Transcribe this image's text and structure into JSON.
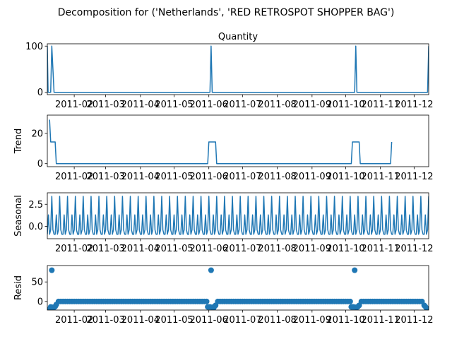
{
  "figure": {
    "suptitle": "Decomposition for ('Netherlands', 'RED RETROSPOT SHOPPER BAG')"
  },
  "colors": {
    "series": "#1f77b4",
    "axes": "#000000",
    "background": "#ffffff"
  },
  "chart_data": [
    {
      "type": "line",
      "title": "Quantity",
      "ylabel": "",
      "ylim": [
        -5,
        105
      ],
      "yticks": [
        0,
        100
      ],
      "ytick_labels": [
        "0",
        "100"
      ],
      "xlim_days": [
        0,
        340
      ],
      "xticks_days": [
        24,
        52,
        83,
        113,
        144,
        174,
        205,
        236,
        266,
        297,
        327
      ],
      "xtick_labels": [
        "2011-02",
        "2011-03",
        "2011-04",
        "2011-05",
        "2011-06",
        "2011-07",
        "2011-08",
        "2011-09",
        "2011-10",
        "2011-11",
        "2011-12"
      ],
      "points": [
        [
          0,
          100
        ],
        [
          0.7,
          0
        ],
        [
          3,
          0
        ],
        [
          4,
          100
        ],
        [
          6,
          0
        ],
        [
          145,
          0
        ],
        [
          146,
          100
        ],
        [
          147,
          0
        ],
        [
          274,
          0
        ],
        [
          275,
          100
        ],
        [
          276,
          0
        ],
        [
          339,
          0
        ],
        [
          340,
          100
        ]
      ]
    },
    {
      "type": "line",
      "title": "",
      "ylabel": "Trend",
      "ylim": [
        -2,
        32
      ],
      "yticks": [
        0,
        20
      ],
      "ytick_labels": [
        "0",
        "20"
      ],
      "xlim_days": [
        0,
        340
      ],
      "xticks_days": [
        24,
        52,
        83,
        113,
        144,
        174,
        205,
        236,
        266,
        297,
        327
      ],
      "xtick_labels": [
        "2011-02",
        "2011-03",
        "2011-04",
        "2011-05",
        "2011-06",
        "2011-07",
        "2011-08",
        "2011-09",
        "2011-10",
        "2011-11",
        "2011-12"
      ],
      "points": [
        [
          2,
          29
        ],
        [
          3,
          14.3
        ],
        [
          7,
          14.3
        ],
        [
          8,
          0
        ],
        [
          143,
          0
        ],
        [
          144,
          14.3
        ],
        [
          150,
          14.3
        ],
        [
          151,
          0
        ],
        [
          271,
          0
        ],
        [
          272,
          14.3
        ],
        [
          278,
          14.3
        ],
        [
          279,
          0
        ],
        [
          306,
          0
        ],
        [
          307,
          14.3
        ]
      ]
    },
    {
      "type": "line",
      "title": "",
      "ylabel": "Seasonal",
      "ylim": [
        -1.4,
        3.8
      ],
      "yticks": [
        0.0,
        2.5
      ],
      "ytick_labels": [
        "0.0",
        "2.5"
      ],
      "xlim_days": [
        0,
        340
      ],
      "xticks_days": [
        24,
        52,
        83,
        113,
        144,
        174,
        205,
        236,
        266,
        297,
        327
      ],
      "xtick_labels": [
        "2011-02",
        "2011-03",
        "2011-04",
        "2011-05",
        "2011-06",
        "2011-07",
        "2011-08",
        "2011-09",
        "2011-10",
        "2011-11",
        "2011-12"
      ],
      "period": 7,
      "phase_start": 0,
      "pattern": [
        -0.9,
        1.3,
        -0.9,
        -0.4,
        3.4,
        -0.4,
        -0.9
      ]
    },
    {
      "type": "scatter",
      "title": "",
      "ylabel": "Resid",
      "ylim": [
        -22,
        92
      ],
      "yticks": [
        0,
        50
      ],
      "ytick_labels": [
        "0",
        "50"
      ],
      "xlim_days": [
        0,
        340
      ],
      "xticks_days": [
        24,
        52,
        83,
        113,
        144,
        174,
        205,
        236,
        266,
        297,
        327
      ],
      "xtick_labels": [
        "2011-02",
        "2011-03",
        "2011-04",
        "2011-05",
        "2011-06",
        "2011-07",
        "2011-08",
        "2011-09",
        "2011-10",
        "2011-11",
        "2011-12"
      ],
      "baseline": 0,
      "point_step": 2,
      "x_range": [
        2,
        338
      ],
      "special_points": [
        [
          2,
          -20
        ],
        [
          3,
          -14
        ],
        [
          4,
          80
        ],
        [
          5,
          -15
        ],
        [
          6,
          -15
        ],
        [
          7,
          -13
        ],
        [
          8,
          -8
        ],
        [
          143,
          -14
        ],
        [
          144,
          -14
        ],
        [
          145,
          -14
        ],
        [
          146,
          80
        ],
        [
          147,
          -15
        ],
        [
          148,
          -18
        ],
        [
          149,
          -13
        ],
        [
          150,
          -10
        ],
        [
          271,
          -14
        ],
        [
          272,
          -14
        ],
        [
          273,
          -14
        ],
        [
          274,
          80
        ],
        [
          275,
          -15
        ],
        [
          276,
          -15
        ],
        [
          277,
          -13
        ],
        [
          278,
          -10
        ],
        [
          336,
          -10
        ],
        [
          337,
          -13
        ],
        [
          338,
          -17
        ]
      ]
    }
  ]
}
